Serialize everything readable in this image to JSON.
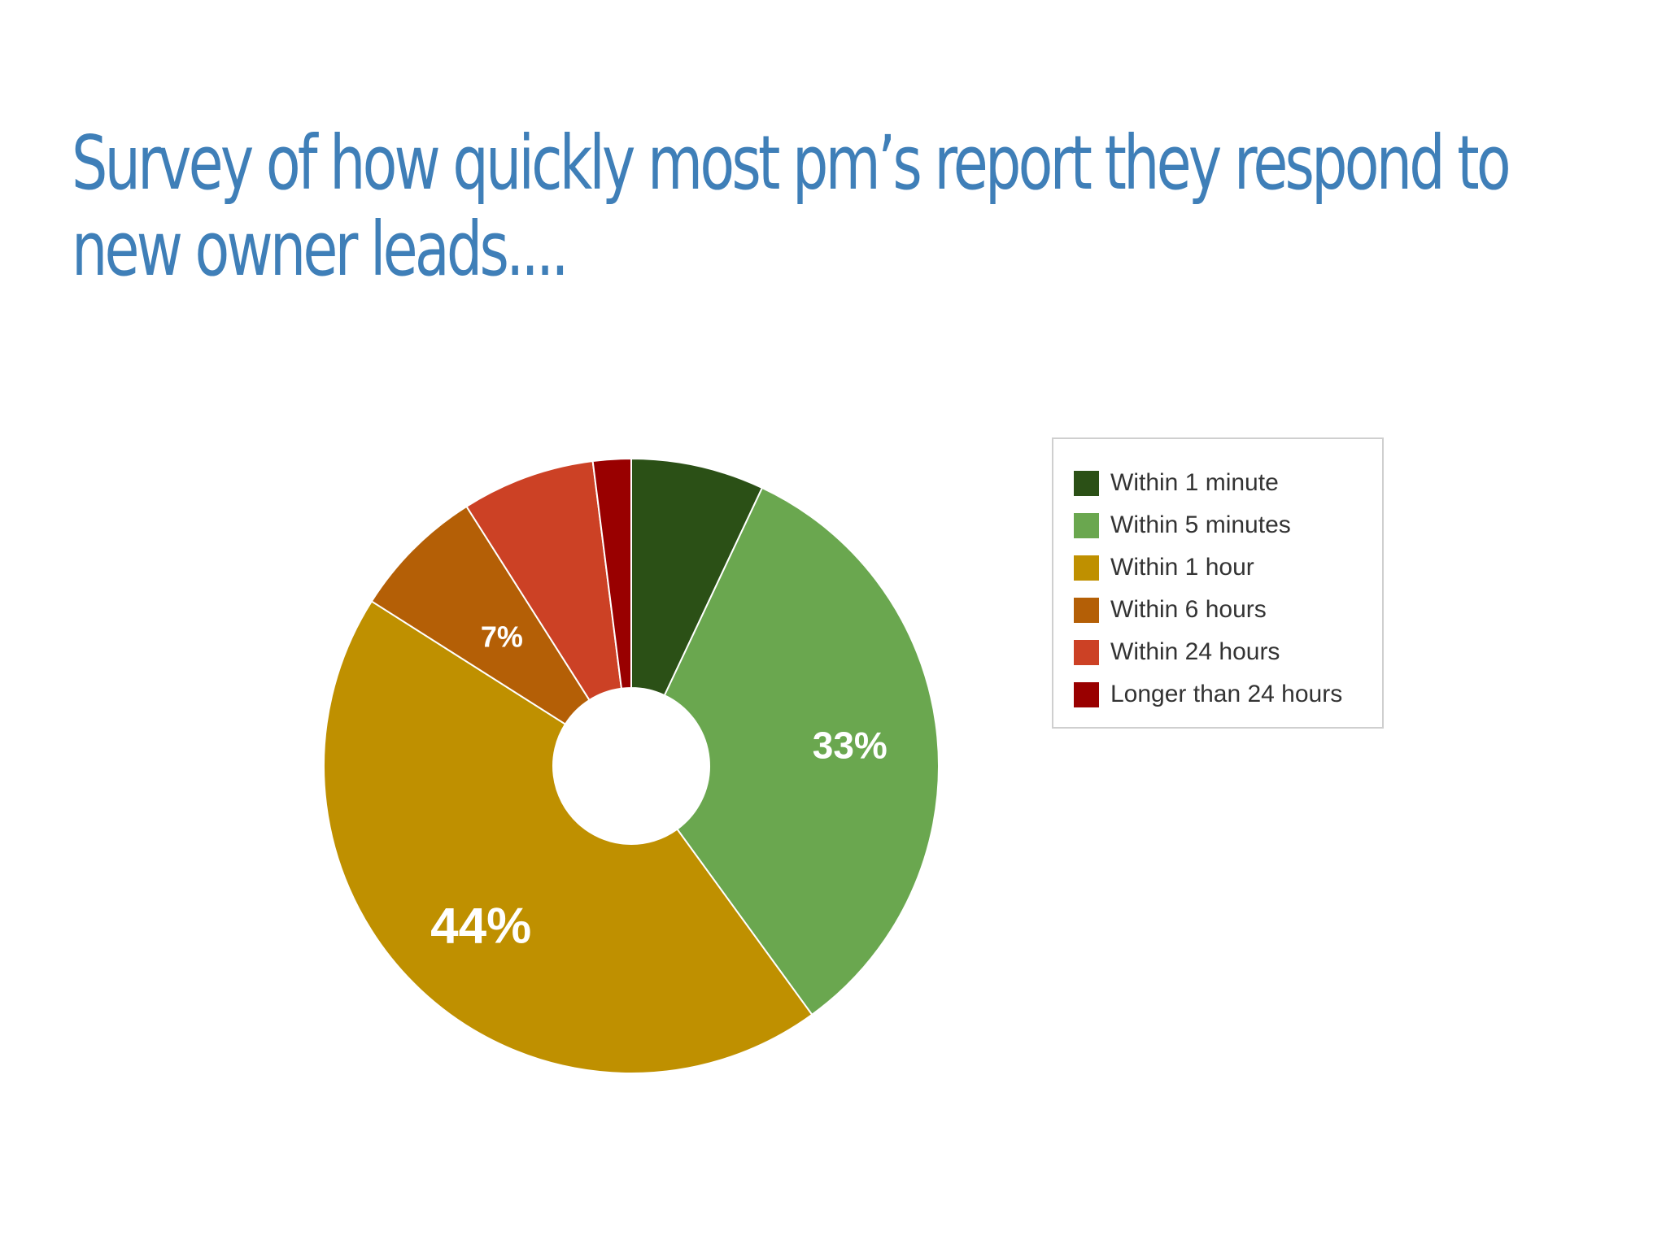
{
  "slide": {
    "title_lines": [
      "Survey of how quickly most pm’s report they respond to",
      "new owner leads...."
    ]
  },
  "chart_data": {
    "type": "pie",
    "variant": "donut",
    "title": "",
    "start_angle_deg": 0,
    "direction": "clockwise",
    "legend_position": "right",
    "categories": [
      "Within 1 minute",
      "Within 5 minutes",
      "Within 1 hour",
      "Within 6 hours",
      "Within 24 hours",
      "Longer than 24 hours"
    ],
    "values": [
      7,
      33,
      44,
      7,
      7,
      2
    ],
    "data_labels": [
      "",
      "33%",
      "44%",
      "7%",
      "",
      ""
    ],
    "colors": [
      "#2b5016",
      "#6aa74f",
      "#bf9000",
      "#b45f06",
      "#cc4125",
      "#990000"
    ]
  }
}
